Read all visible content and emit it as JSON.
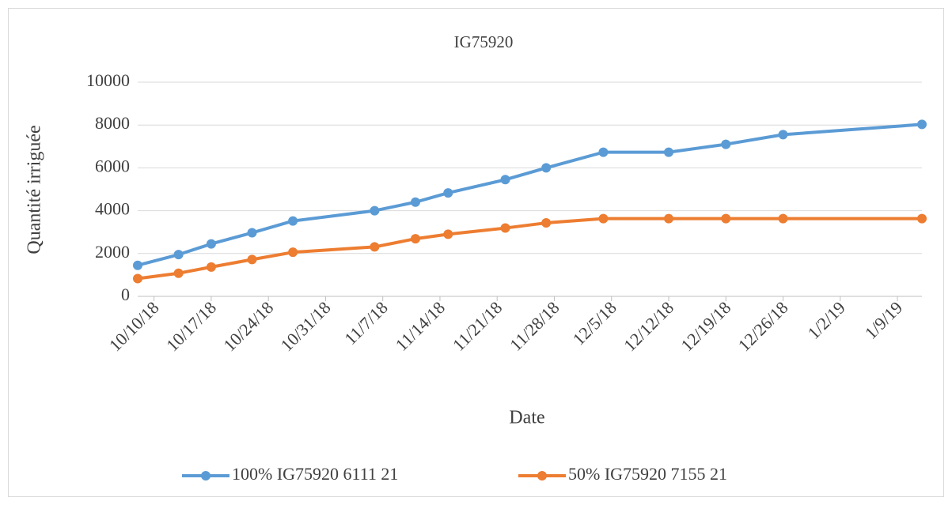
{
  "chart_data": {
    "type": "line",
    "title": "IG75920",
    "x_label": "Date",
    "y_label": "Quantité irriguée",
    "x": [
      "10/8/18",
      "10/13/18",
      "10/17/18",
      "10/22/18",
      "10/27/18",
      "11/6/18",
      "11/11/18",
      "11/15/18",
      "11/22/18",
      "11/27/18",
      "12/4/18",
      "12/12/18",
      "12/19/18",
      "12/26/18",
      "1/12/19"
    ],
    "series": [
      {
        "name": "100% IG75920 6111 21",
        "color": "#5b9bd5",
        "values": [
          1450,
          1950,
          2450,
          2970,
          3520,
          4000,
          4400,
          4830,
          5450,
          6000,
          6730,
          6730,
          7100,
          7550,
          8030
        ]
      },
      {
        "name": "50% IG75920 7155 21",
        "color": "#ed7d31",
        "values": [
          830,
          1080,
          1370,
          1720,
          2060,
          2310,
          2690,
          2900,
          3190,
          3430,
          3630,
          3630,
          3630,
          3630,
          3630
        ]
      }
    ],
    "xlim": [
      "10/8/18",
      "1/12/19"
    ],
    "xticks": [
      "10/10/18",
      "10/17/18",
      "10/24/18",
      "10/31/18",
      "11/7/18",
      "11/14/18",
      "11/21/18",
      "11/28/18",
      "12/5/18",
      "12/12/18",
      "12/19/18",
      "12/26/18",
      "1/2/19",
      "1/9/19"
    ],
    "ylim": [
      0,
      10000
    ],
    "yticks": [
      0,
      2000,
      4000,
      6000,
      8000,
      10000
    ],
    "grid": true,
    "legend": "bottom"
  }
}
